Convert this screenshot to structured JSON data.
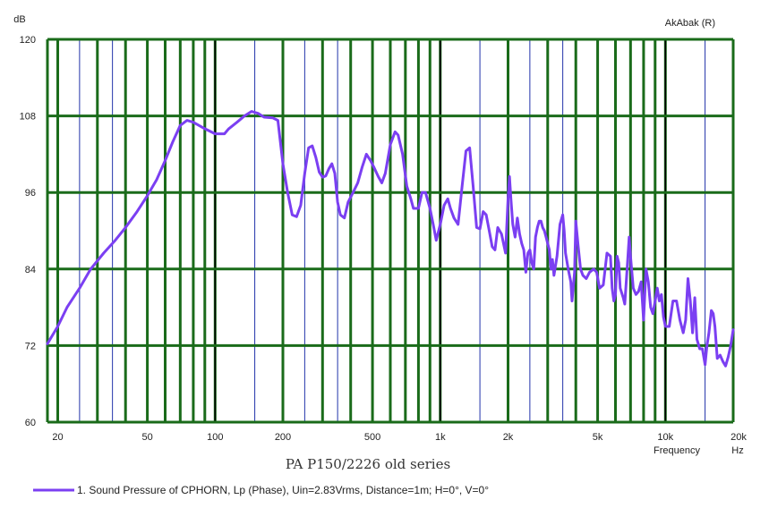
{
  "chart_data": {
    "type": "line",
    "title": "PA P150/2226 old series",
    "top_right_label": "AkAbak (R)",
    "ylabel": "dB",
    "xlabel": "Frequency",
    "x_unit": "Hz",
    "x_scale": "log",
    "xlim": [
      18,
      20000
    ],
    "ylim": [
      60,
      120
    ],
    "y_ticks": [
      "60",
      "72",
      "84",
      "96",
      "108",
      "120"
    ],
    "x_tick_values": [
      20,
      50,
      100,
      200,
      500,
      1000,
      2000,
      5000,
      10000,
      20000
    ],
    "x_tick_labels": [
      "20",
      "50",
      "100",
      "200",
      "500",
      "1k",
      "2k",
      "5k",
      "10k",
      "20k"
    ],
    "grid": true,
    "legend_position": "bottom-left",
    "colors": {
      "plot_background": "#ffffff",
      "major_grid": "#1a6b1a",
      "minor_grid": "#2233aa",
      "decade_grid": "#000000",
      "series": "#7b3ff2"
    },
    "series": [
      {
        "name": "1. Sound Pressure of CPHORN, Lp (Phase), Uin=2.83Vrms, Distance=1m; H=0°, V=0°",
        "points": [
          [
            18,
            72.3
          ],
          [
            20,
            75
          ],
          [
            22,
            78
          ],
          [
            25,
            81
          ],
          [
            28,
            84
          ],
          [
            32,
            86.5
          ],
          [
            36,
            88.5
          ],
          [
            40,
            90.5
          ],
          [
            45,
            93
          ],
          [
            50,
            95.5
          ],
          [
            55,
            98
          ],
          [
            60,
            101
          ],
          [
            65,
            104
          ],
          [
            70,
            106.5
          ],
          [
            75,
            107.3
          ],
          [
            80,
            107
          ],
          [
            90,
            106
          ],
          [
            100,
            105.2
          ],
          [
            110,
            105.2
          ],
          [
            115,
            106
          ],
          [
            125,
            107
          ],
          [
            135,
            108
          ],
          [
            145,
            108.7
          ],
          [
            155,
            108.4
          ],
          [
            165,
            107.8
          ],
          [
            180,
            107.7
          ],
          [
            190,
            107.3
          ],
          [
            200,
            100.5
          ],
          [
            210,
            96
          ],
          [
            220,
            92.5
          ],
          [
            230,
            92.2
          ],
          [
            240,
            94
          ],
          [
            250,
            99
          ],
          [
            260,
            103
          ],
          [
            270,
            103.3
          ],
          [
            280,
            101.5
          ],
          [
            290,
            99.2
          ],
          [
            300,
            98.4
          ],
          [
            310,
            98.6
          ],
          [
            320,
            99.7
          ],
          [
            330,
            100.5
          ],
          [
            340,
            99
          ],
          [
            350,
            94.5
          ],
          [
            360,
            92.5
          ],
          [
            375,
            92
          ],
          [
            390,
            94.5
          ],
          [
            410,
            96
          ],
          [
            430,
            97.5
          ],
          [
            450,
            100
          ],
          [
            470,
            102
          ],
          [
            490,
            101
          ],
          [
            510,
            99.8
          ],
          [
            530,
            98.5
          ],
          [
            550,
            97.5
          ],
          [
            570,
            99
          ],
          [
            600,
            103.5
          ],
          [
            630,
            105.5
          ],
          [
            650,
            105
          ],
          [
            680,
            102
          ],
          [
            710,
            97
          ],
          [
            740,
            95
          ],
          [
            760,
            93.5
          ],
          [
            800,
            93.5
          ],
          [
            830,
            96
          ],
          [
            860,
            96
          ],
          [
            900,
            93.5
          ],
          [
            930,
            91
          ],
          [
            960,
            88.5
          ],
          [
            1000,
            91
          ],
          [
            1040,
            94
          ],
          [
            1080,
            95
          ],
          [
            1110,
            93.5
          ],
          [
            1150,
            92
          ],
          [
            1200,
            91
          ],
          [
            1250,
            97
          ],
          [
            1300,
            102.5
          ],
          [
            1350,
            103
          ],
          [
            1400,
            97
          ],
          [
            1450,
            90.5
          ],
          [
            1500,
            90.3
          ],
          [
            1550,
            93
          ],
          [
            1600,
            92.5
          ],
          [
            1650,
            90
          ],
          [
            1700,
            87.5
          ],
          [
            1750,
            87
          ],
          [
            1800,
            90.5
          ],
          [
            1870,
            89.5
          ],
          [
            1950,
            86.5
          ],
          [
            2000,
            95
          ],
          [
            2030,
            98.5
          ],
          [
            2060,
            95
          ],
          [
            2100,
            91
          ],
          [
            2150,
            89
          ],
          [
            2200,
            92
          ],
          [
            2250,
            89.5
          ],
          [
            2300,
            88
          ],
          [
            2350,
            87
          ],
          [
            2400,
            83.5
          ],
          [
            2450,
            86.5
          ],
          [
            2500,
            87
          ],
          [
            2550,
            85
          ],
          [
            2600,
            84
          ],
          [
            2650,
            89
          ],
          [
            2700,
            90.5
          ],
          [
            2750,
            91.5
          ],
          [
            2800,
            91.5
          ],
          [
            2850,
            90.5
          ],
          [
            2900,
            90
          ],
          [
            2950,
            89
          ],
          [
            3000,
            88
          ],
          [
            3050,
            87
          ],
          [
            3100,
            84
          ],
          [
            3150,
            85.5
          ],
          [
            3200,
            83
          ],
          [
            3300,
            86
          ],
          [
            3400,
            91
          ],
          [
            3500,
            92.5
          ],
          [
            3550,
            90
          ],
          [
            3600,
            86.5
          ],
          [
            3700,
            84
          ],
          [
            3800,
            82
          ],
          [
            3850,
            79
          ],
          [
            3950,
            83.5
          ],
          [
            4000,
            91.5
          ],
          [
            4100,
            87.5
          ],
          [
            4200,
            84
          ],
          [
            4300,
            83
          ],
          [
            4450,
            82.5
          ],
          [
            4600,
            83.5
          ],
          [
            4800,
            84
          ],
          [
            4950,
            83.5
          ],
          [
            5100,
            81
          ],
          [
            5300,
            81.5
          ],
          [
            5500,
            86.5
          ],
          [
            5700,
            86
          ],
          [
            5800,
            81
          ],
          [
            5900,
            79
          ],
          [
            6000,
            80
          ],
          [
            6100,
            86
          ],
          [
            6200,
            85
          ],
          [
            6300,
            81
          ],
          [
            6500,
            79.5
          ],
          [
            6600,
            78.5
          ],
          [
            6800,
            85.5
          ],
          [
            6900,
            89
          ],
          [
            7000,
            86
          ],
          [
            7200,
            81
          ],
          [
            7400,
            80
          ],
          [
            7600,
            80.5
          ],
          [
            7800,
            82
          ],
          [
            8000,
            76
          ],
          [
            8200,
            84
          ],
          [
            8400,
            82
          ],
          [
            8600,
            78
          ],
          [
            8800,
            77
          ],
          [
            9000,
            79
          ],
          [
            9200,
            81
          ],
          [
            9400,
            79
          ],
          [
            9600,
            80
          ],
          [
            9800,
            76.5
          ],
          [
            10000,
            75
          ],
          [
            10400,
            75
          ],
          [
            10800,
            79
          ],
          [
            11200,
            79
          ],
          [
            11600,
            76
          ],
          [
            12000,
            74
          ],
          [
            12300,
            76
          ],
          [
            12600,
            82.5
          ],
          [
            12900,
            79
          ],
          [
            13200,
            74
          ],
          [
            13500,
            79.5
          ],
          [
            13800,
            73
          ],
          [
            14200,
            71.5
          ],
          [
            14600,
            71.5
          ],
          [
            15000,
            69
          ],
          [
            15300,
            72
          ],
          [
            15600,
            74
          ],
          [
            16000,
            77.5
          ],
          [
            16300,
            77
          ],
          [
            16600,
            75
          ],
          [
            17000,
            70
          ],
          [
            17500,
            70.5
          ],
          [
            18000,
            69.5
          ],
          [
            18500,
            68.8
          ],
          [
            19000,
            70.2
          ],
          [
            19500,
            72
          ],
          [
            20000,
            74.5
          ]
        ]
      }
    ]
  }
}
